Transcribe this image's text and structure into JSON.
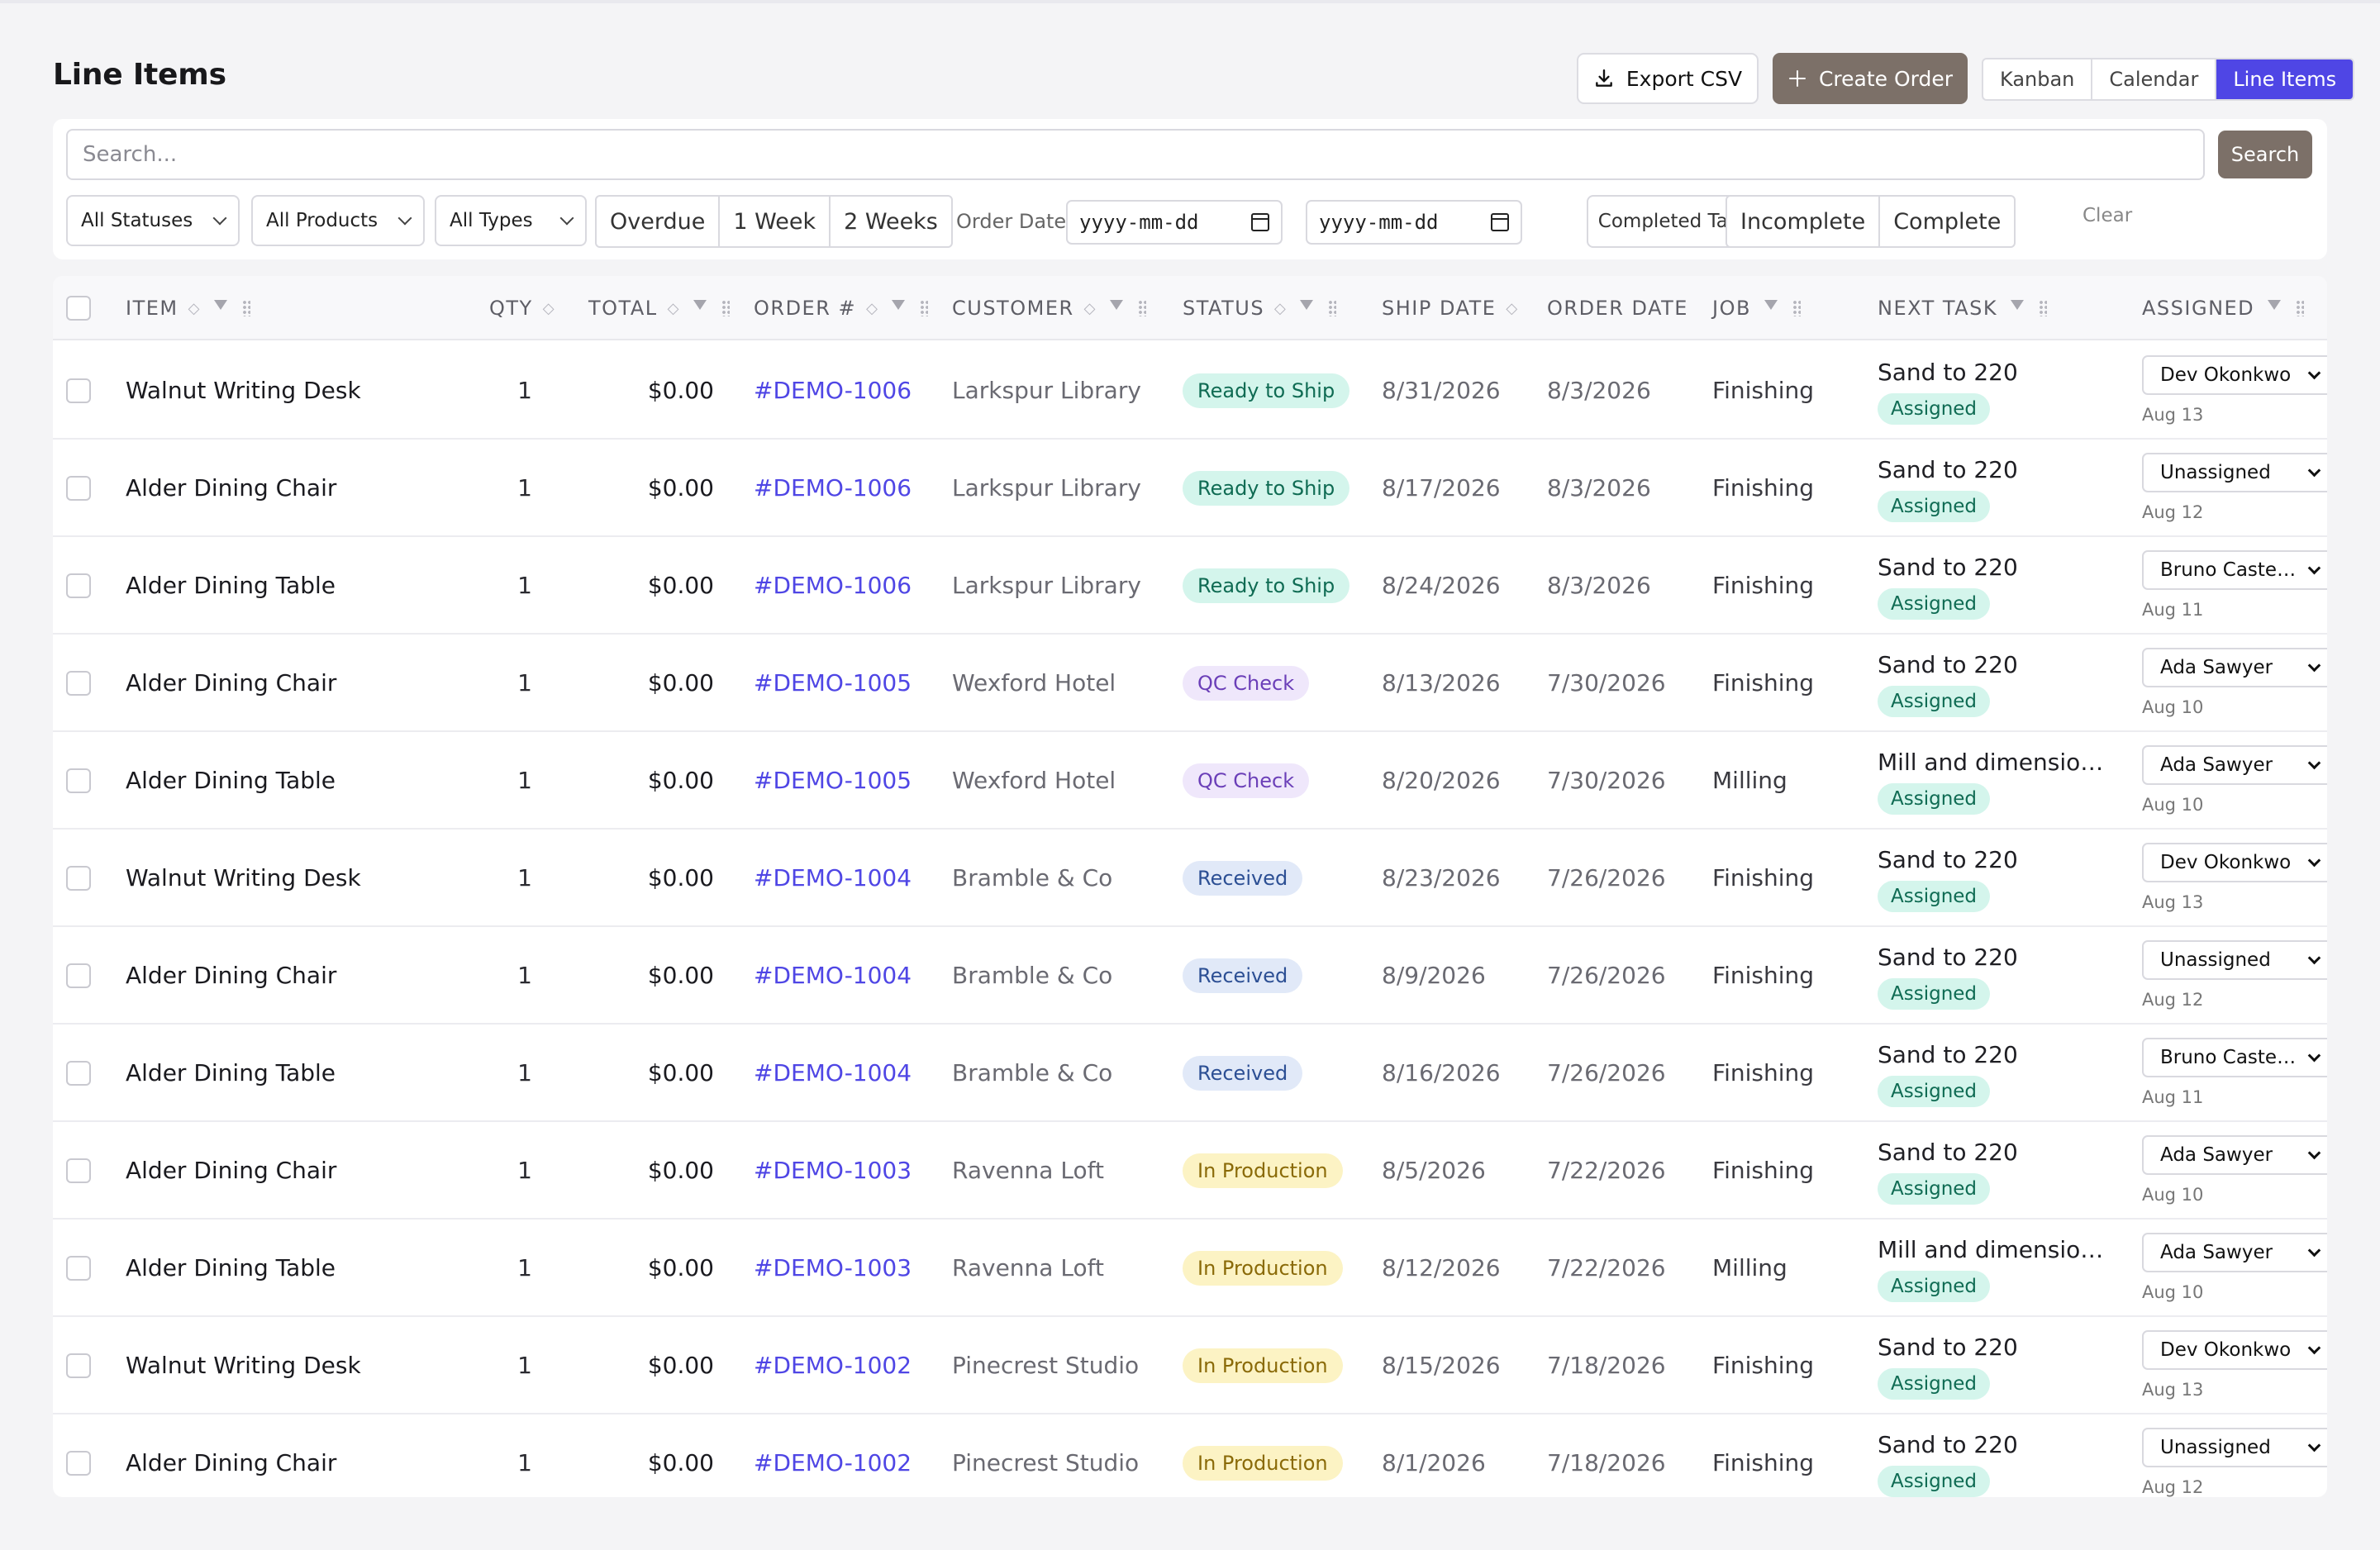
{
  "page": {
    "title": "Line Items"
  },
  "header": {
    "export_label": "Export CSV",
    "create_label": "Create Order",
    "views": [
      "Kanban",
      "Calendar",
      "Line Items"
    ],
    "active_view": "Line Items"
  },
  "filters": {
    "search_placeholder": "Search...",
    "search_button": "Search",
    "statuses": "All Statuses",
    "products": "All Products",
    "types": "All Types",
    "range_options": [
      "Overdue",
      "1 Week",
      "2 Weeks"
    ],
    "order_date_label": "Order Date:",
    "date_from_placeholder": "yyyy-mm-dd",
    "date_separator": "–",
    "date_to_placeholder": "yyyy-mm-dd",
    "completed_tasks": "Completed Tasks",
    "completion_options": [
      "Incomplete",
      "Complete"
    ],
    "clear": "Clear"
  },
  "table": {
    "columns": {
      "item": "ITEM",
      "qty": "QTY",
      "total": "TOTAL",
      "order": "ORDER #",
      "customer": "CUSTOMER",
      "status": "STATUS",
      "ship_date": "SHIP DATE",
      "order_date": "ORDER DATE",
      "job": "JOB",
      "next_task": "NEXT TASK",
      "assigned": "ASSIGNED"
    },
    "rows": [
      {
        "item": "Walnut Writing Desk",
        "qty": "1",
        "total": "$0.00",
        "order": "#DEMO-1006",
        "customer": "Larkspur Library",
        "status": "Ready to Ship",
        "status_kind": "ready",
        "ship": "8/31/2026",
        "odate": "8/3/2026",
        "job": "Finishing",
        "task": "Sand to 220",
        "task_status": "Assigned",
        "assignee": "Dev Okonkwo",
        "due": "Aug 13"
      },
      {
        "item": "Alder Dining Chair",
        "qty": "1",
        "total": "$0.00",
        "order": "#DEMO-1006",
        "customer": "Larkspur Library",
        "status": "Ready to Ship",
        "status_kind": "ready",
        "ship": "8/17/2026",
        "odate": "8/3/2026",
        "job": "Finishing",
        "task": "Sand to 220",
        "task_status": "Assigned",
        "assignee": "Unassigned",
        "due": "Aug 12"
      },
      {
        "item": "Alder Dining Table",
        "qty": "1",
        "total": "$0.00",
        "order": "#DEMO-1006",
        "customer": "Larkspur Library",
        "status": "Ready to Ship",
        "status_kind": "ready",
        "ship": "8/24/2026",
        "odate": "8/3/2026",
        "job": "Finishing",
        "task": "Sand to 220",
        "task_status": "Assigned",
        "assignee": "Bruno Castell...",
        "due": "Aug 11"
      },
      {
        "item": "Alder Dining Chair",
        "qty": "1",
        "total": "$0.00",
        "order": "#DEMO-1005",
        "customer": "Wexford Hotel",
        "status": "QC Check",
        "status_kind": "qc",
        "ship": "8/13/2026",
        "odate": "7/30/2026",
        "job": "Finishing",
        "task": "Sand to 220",
        "task_status": "Assigned",
        "assignee": "Ada Sawyer",
        "due": "Aug 10"
      },
      {
        "item": "Alder Dining Table",
        "qty": "1",
        "total": "$0.00",
        "order": "#DEMO-1005",
        "customer": "Wexford Hotel",
        "status": "QC Check",
        "status_kind": "qc",
        "ship": "8/20/2026",
        "odate": "7/30/2026",
        "job": "Milling",
        "task": "Mill and dimension ...",
        "task_status": "Assigned",
        "assignee": "Ada Sawyer",
        "due": "Aug 10"
      },
      {
        "item": "Walnut Writing Desk",
        "qty": "1",
        "total": "$0.00",
        "order": "#DEMO-1004",
        "customer": "Bramble & Co",
        "status": "Received",
        "status_kind": "received",
        "ship": "8/23/2026",
        "odate": "7/26/2026",
        "job": "Finishing",
        "task": "Sand to 220",
        "task_status": "Assigned",
        "assignee": "Dev Okonkwo",
        "due": "Aug 13"
      },
      {
        "item": "Alder Dining Chair",
        "qty": "1",
        "total": "$0.00",
        "order": "#DEMO-1004",
        "customer": "Bramble & Co",
        "status": "Received",
        "status_kind": "received",
        "ship": "8/9/2026",
        "odate": "7/26/2026",
        "job": "Finishing",
        "task": "Sand to 220",
        "task_status": "Assigned",
        "assignee": "Unassigned",
        "due": "Aug 12"
      },
      {
        "item": "Alder Dining Table",
        "qty": "1",
        "total": "$0.00",
        "order": "#DEMO-1004",
        "customer": "Bramble & Co",
        "status": "Received",
        "status_kind": "received",
        "ship": "8/16/2026",
        "odate": "7/26/2026",
        "job": "Finishing",
        "task": "Sand to 220",
        "task_status": "Assigned",
        "assignee": "Bruno Castell...",
        "due": "Aug 11"
      },
      {
        "item": "Alder Dining Chair",
        "qty": "1",
        "total": "$0.00",
        "order": "#DEMO-1003",
        "customer": "Ravenna Loft",
        "status": "In Production",
        "status_kind": "prod",
        "ship": "8/5/2026",
        "odate": "7/22/2026",
        "job": "Finishing",
        "task": "Sand to 220",
        "task_status": "Assigned",
        "assignee": "Ada Sawyer",
        "due": "Aug 10"
      },
      {
        "item": "Alder Dining Table",
        "qty": "1",
        "total": "$0.00",
        "order": "#DEMO-1003",
        "customer": "Ravenna Loft",
        "status": "In Production",
        "status_kind": "prod",
        "ship": "8/12/2026",
        "odate": "7/22/2026",
        "job": "Milling",
        "task": "Mill and dimension ...",
        "task_status": "Assigned",
        "assignee": "Ada Sawyer",
        "due": "Aug 10"
      },
      {
        "item": "Walnut Writing Desk",
        "qty": "1",
        "total": "$0.00",
        "order": "#DEMO-1002",
        "customer": "Pinecrest Studio",
        "status": "In Production",
        "status_kind": "prod",
        "ship": "8/15/2026",
        "odate": "7/18/2026",
        "job": "Finishing",
        "task": "Sand to 220",
        "task_status": "Assigned",
        "assignee": "Dev Okonkwo",
        "due": "Aug 13"
      },
      {
        "item": "Alder Dining Chair",
        "qty": "1",
        "total": "$0.00",
        "order": "#DEMO-1002",
        "customer": "Pinecrest Studio",
        "status": "In Production",
        "status_kind": "prod",
        "ship": "8/1/2026",
        "odate": "7/18/2026",
        "job": "Finishing",
        "task": "Sand to 220",
        "task_status": "Assigned",
        "assignee": "Unassigned",
        "due": "Aug 12"
      }
    ]
  },
  "colors": {
    "accent": "#4f46e5",
    "brand_button": "#7c7068"
  }
}
